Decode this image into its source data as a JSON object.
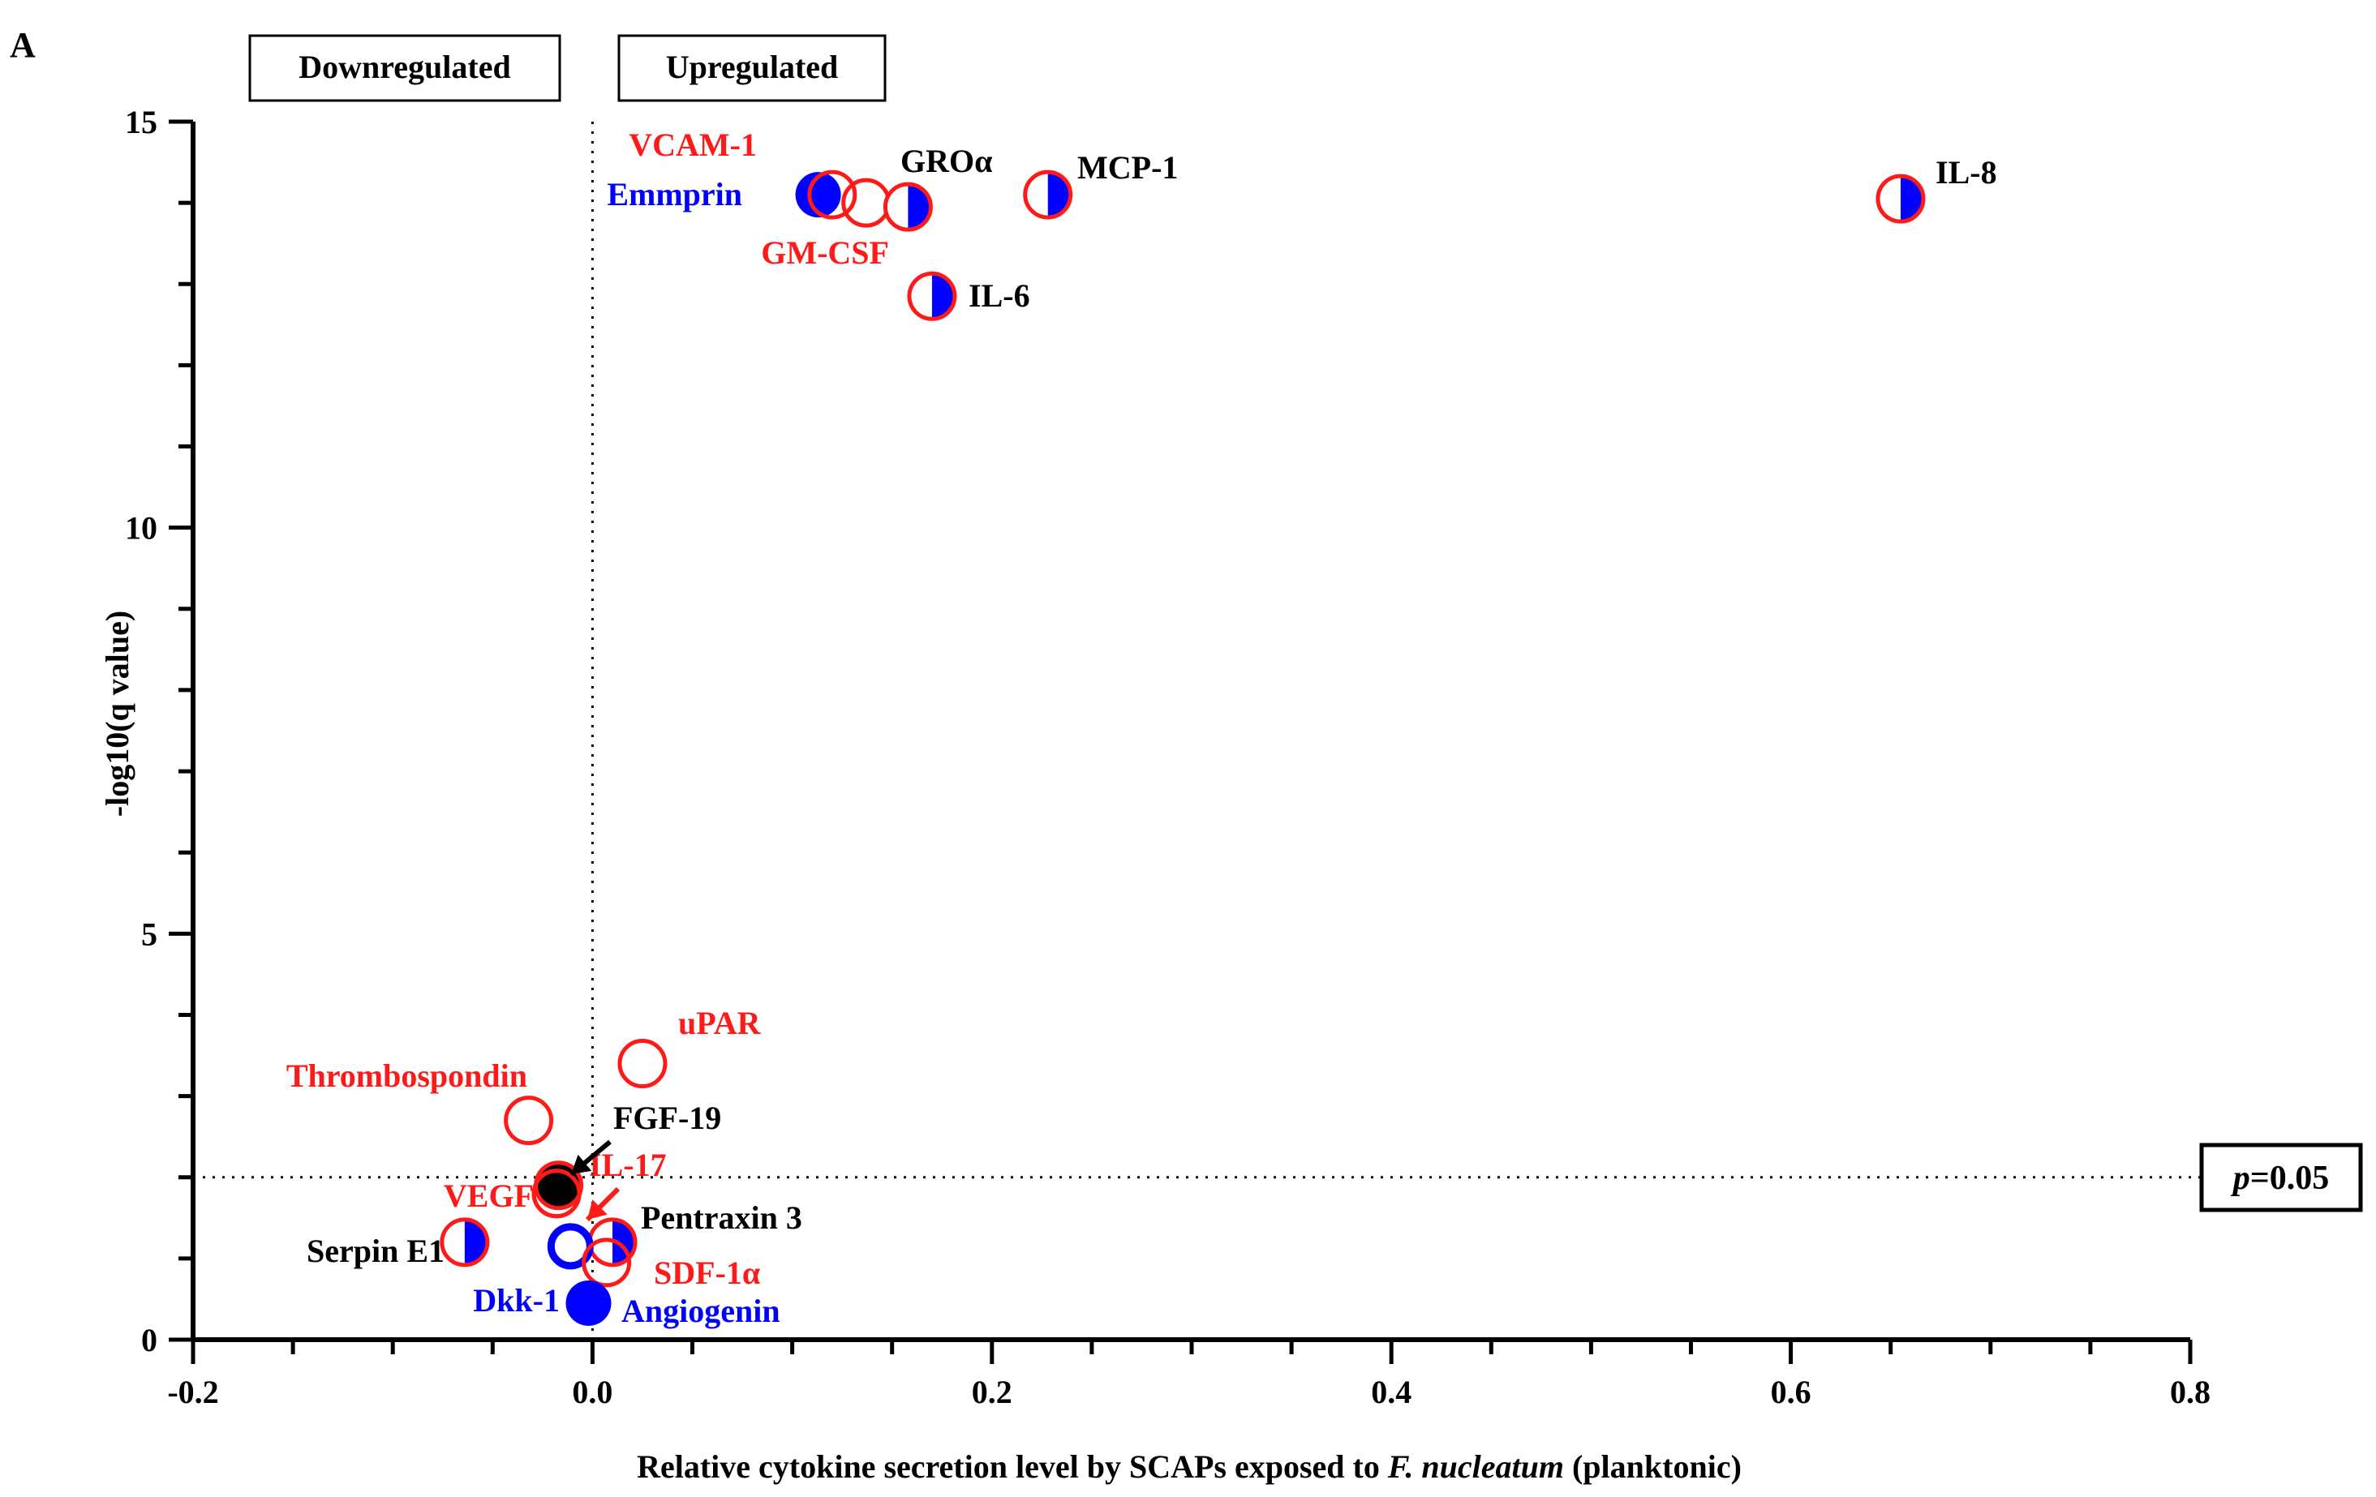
{
  "chart_data": {
    "type": "scatter",
    "panel_label": "A",
    "xlabel_parts": [
      "Relative cytokine secretion level by SCAPs exposed to ",
      "F. nucleatum",
      " (planktonic)"
    ],
    "ylabel": "-log10(q value)",
    "xlim": [
      -0.2,
      0.8
    ],
    "ylim": [
      0,
      15
    ],
    "x_ticks": [
      {
        "value": -0.2,
        "label": "-0.2"
      },
      {
        "value": 0.0,
        "label": "0.0"
      },
      {
        "value": 0.2,
        "label": "0.2"
      },
      {
        "value": 0.4,
        "label": "0.4"
      },
      {
        "value": 0.6,
        "label": "0.6"
      },
      {
        "value": 0.8,
        "label": "0.8"
      }
    ],
    "y_ticks": [
      {
        "value": 0,
        "label": "0"
      },
      {
        "value": 5,
        "label": "5"
      },
      {
        "value": 10,
        "label": "10"
      },
      {
        "value": 15,
        "label": "15"
      }
    ],
    "region_labels": {
      "down": "Downregulated",
      "up": "Upregulated"
    },
    "threshold": {
      "y": 2.0,
      "label_p": "p",
      "label_value": "=0.05"
    },
    "zero_line_x": 0,
    "colors": {
      "red": "#ff1a1a",
      "blue": "#0000ff",
      "black": "#000000"
    },
    "points": [
      {
        "name": "Emmprin",
        "x": 0.113,
        "y": 14.1,
        "marker": "blue-filled",
        "label_color": "#0000ff"
      },
      {
        "name": "VCAM-1",
        "x": 0.12,
        "y": 14.1,
        "marker": "red-ring",
        "label_color": "#ff1a1a"
      },
      {
        "name": "GM-CSF",
        "x": 0.137,
        "y": 14.0,
        "marker": "red-ring",
        "label_color": "#ff1a1a"
      },
      {
        "name": "GROα",
        "x": 0.158,
        "y": 13.95,
        "marker": "half",
        "label_color": "#000000"
      },
      {
        "name": "MCP-1",
        "x": 0.228,
        "y": 14.1,
        "marker": "half",
        "label_color": "#000000"
      },
      {
        "name": "IL-8",
        "x": 0.655,
        "y": 14.05,
        "marker": "half",
        "label_color": "#000000"
      },
      {
        "name": "IL-6",
        "x": 0.17,
        "y": 12.85,
        "marker": "half",
        "label_color": "#000000"
      },
      {
        "name": "uPAR",
        "x": 0.025,
        "y": 3.4,
        "marker": "red-ring",
        "label_color": "#ff1a1a"
      },
      {
        "name": "Thrombospondin",
        "x": -0.032,
        "y": 2.7,
        "marker": "red-ring",
        "label_color": "#ff1a1a"
      },
      {
        "name": "FGF-19",
        "x": -0.017,
        "y": 1.9,
        "marker": "black-filled",
        "label_color": "#000000"
      },
      {
        "name": "IL-17",
        "x": -0.018,
        "y": 1.8,
        "marker": "red-ring",
        "label_color": "#ff1a1a"
      },
      {
        "name": "VEGF",
        "x": -0.018,
        "y": 1.8,
        "marker": "red-ring",
        "label_color": "#ff1a1a"
      },
      {
        "name": "Serpin E1",
        "x": -0.064,
        "y": 1.2,
        "marker": "half",
        "label_color": "#000000"
      },
      {
        "name": "Pentraxin 3",
        "x": 0.01,
        "y": 1.2,
        "marker": "half",
        "label_color": "#000000"
      },
      {
        "name": "Dkk-1",
        "x": -0.011,
        "y": 1.15,
        "marker": "blue-ring",
        "label_color": "#0000ff"
      },
      {
        "name": "SDF-1α",
        "x": 0.007,
        "y": 0.95,
        "marker": "red-ring",
        "label_color": "#ff1a1a"
      },
      {
        "name": "Angiogenin",
        "x": -0.002,
        "y": 0.45,
        "marker": "blue-filled",
        "label_color": "#0000ff"
      }
    ]
  }
}
